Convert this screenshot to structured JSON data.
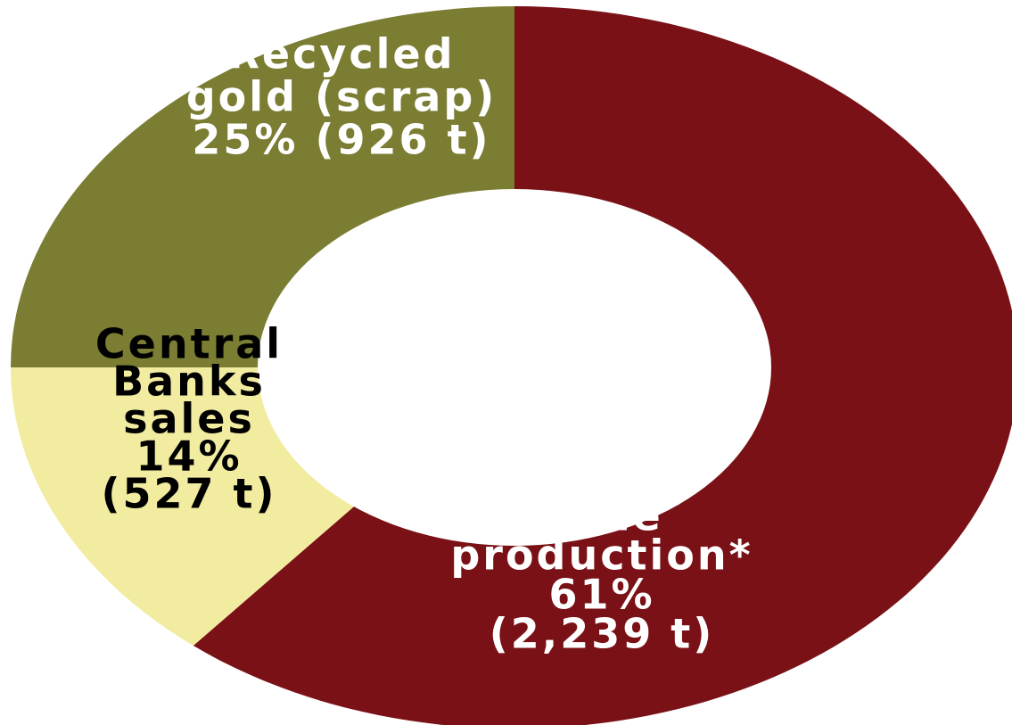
{
  "chart_data": {
    "type": "pie",
    "variant": "donut",
    "slices": [
      {
        "label_lines": [
          "Mine",
          "production*",
          "61%",
          "(2,239 t)"
        ],
        "percent": 61,
        "tonnes": 2239,
        "color": "#7a1116",
        "text_color": "#ffffff"
      },
      {
        "label_lines": [
          "Central",
          "Banks",
          "sales",
          "14%",
          "(527 t)"
        ],
        "percent": 14,
        "tonnes": 527,
        "color": "#f2eca0",
        "text_color": "#000000"
      },
      {
        "label_lines": [
          "Recycled",
          "gold (scrap)",
          "25% (926 t)"
        ],
        "percent": 25,
        "tonnes": 926,
        "color": "#7b7d33",
        "text_color": "#ffffff"
      }
    ]
  }
}
